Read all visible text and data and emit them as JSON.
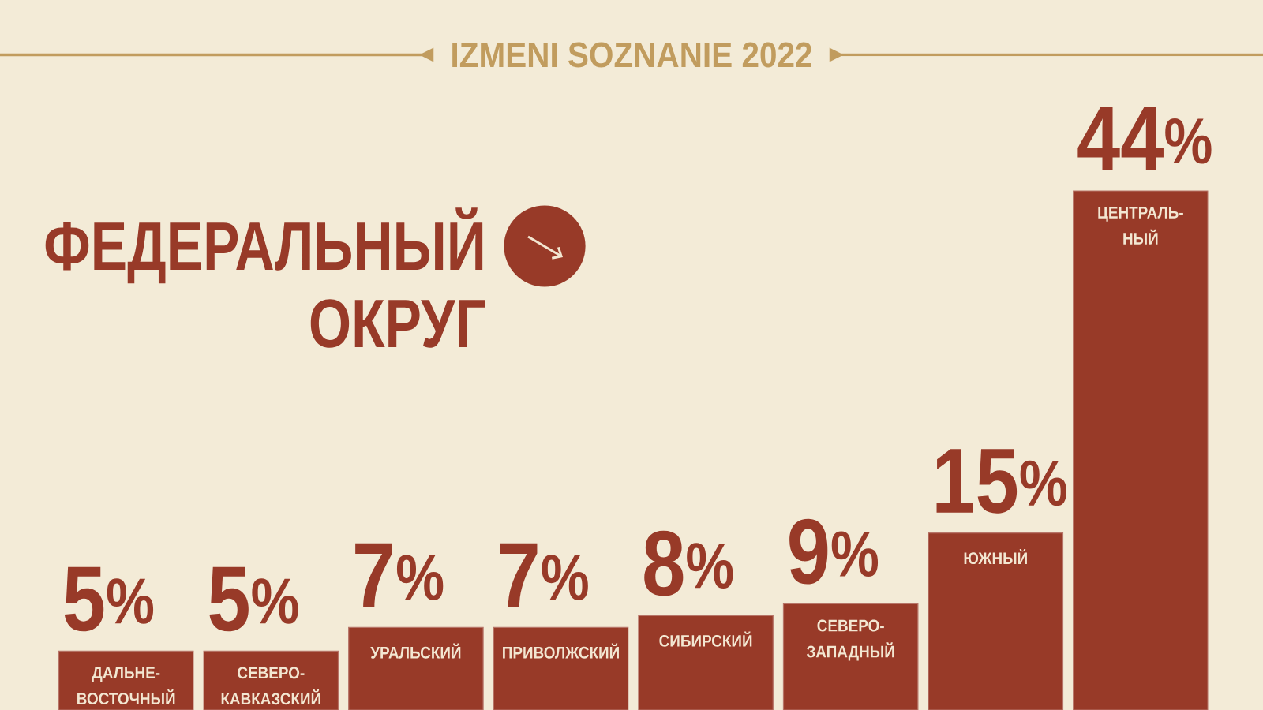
{
  "chart_data": {
    "type": "bar",
    "title": "IZMENI SOZNANIE 2022",
    "subtitle": "ФЕДЕРАЛЬНЫЙ ОКРУГ",
    "categories": [
      "ДАЛЬНЕ-ВОСТОЧНЫЙ",
      "СЕВЕРО-КАВКАЗСКИЙ",
      "УРАЛЬСКИЙ",
      "ПРИВОЛЖСКИЙ",
      "СИБИРСКИЙ",
      "СЕВЕРО-ЗАПАДНЫЙ",
      "ЮЖНЫЙ",
      "ЦЕНТРАЛЬ-НЫЙ"
    ],
    "values": [
      5,
      5,
      7,
      7,
      8,
      9,
      15,
      44
    ],
    "color": "#983a28",
    "value_labels": [
      "5$^{%}$",
      "5$^{%}$",
      "7$^{%}$",
      "7$^{%}$",
      "8$^{%}$",
      "9$^{%}$",
      "15$^{%}$",
      "44$^{%}$"
    ]
  }
}
